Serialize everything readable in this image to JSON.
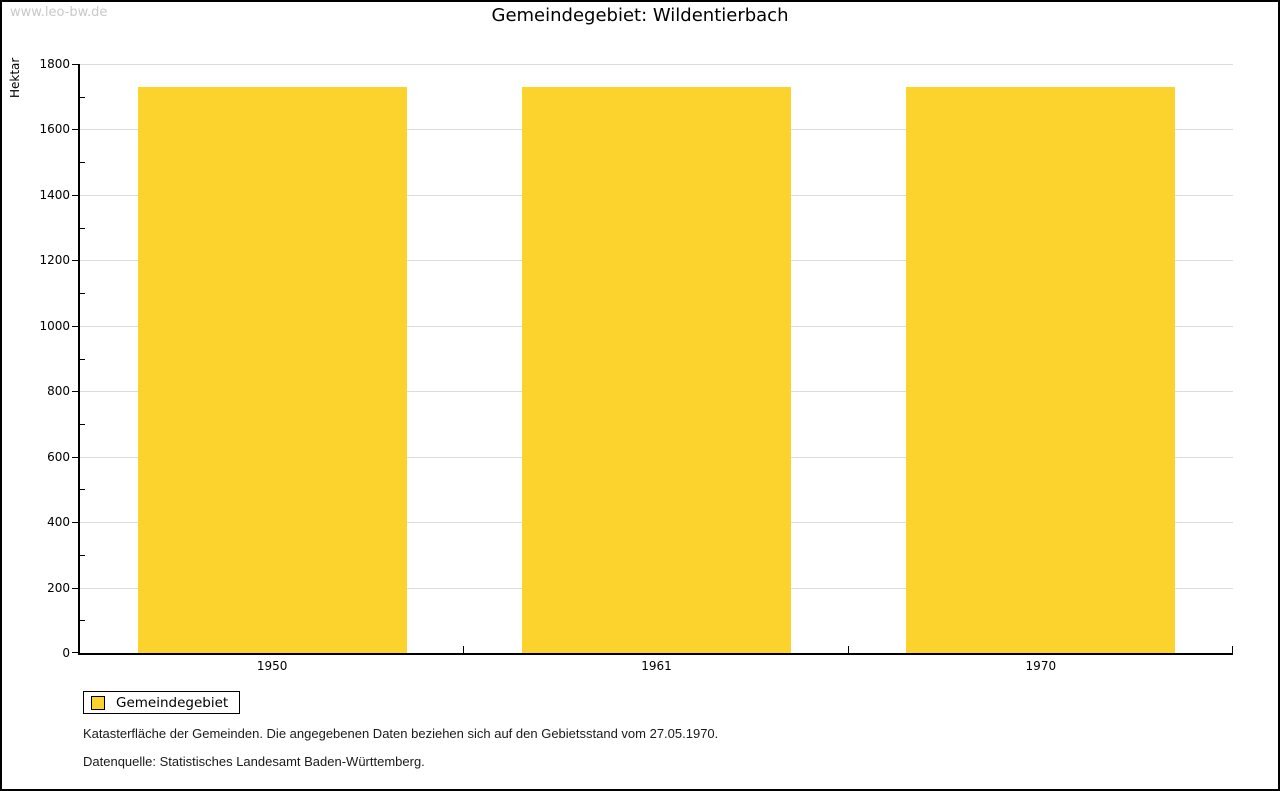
{
  "watermark": "www.leo-bw.de",
  "header": {
    "title": "Gemeindegebiet: Wildentierbach"
  },
  "chart_data": {
    "type": "bar",
    "title": "Gemeindegebiet: Wildentierbach",
    "categories": [
      "1950",
      "1961",
      "1970"
    ],
    "series": [
      {
        "name": "Gemeindegebiet",
        "values": [
          1730,
          1730,
          1730
        ],
        "color": "#FCD32D"
      }
    ],
    "xlabel": "",
    "ylabel": "Hektar",
    "ylim": [
      0,
      1800
    ],
    "ytick_step": 200,
    "yminor_step": 100,
    "grid": true,
    "legend_position": "bottom-left",
    "colors": {
      "bar": "#FCD32D",
      "grid": "#DDDDDD",
      "axis": "#000000"
    }
  },
  "legend": {
    "items": [
      {
        "label": "Gemeindegebiet",
        "color": "#FCD32D"
      }
    ]
  },
  "footnotes": {
    "line1": "Katasterfläche der Gemeinden. Die angegebenen Daten beziehen sich auf den Gebietsstand vom 27.05.1970.",
    "line2": "Datenquelle: Statistisches Landesamt Baden-Württemberg."
  }
}
